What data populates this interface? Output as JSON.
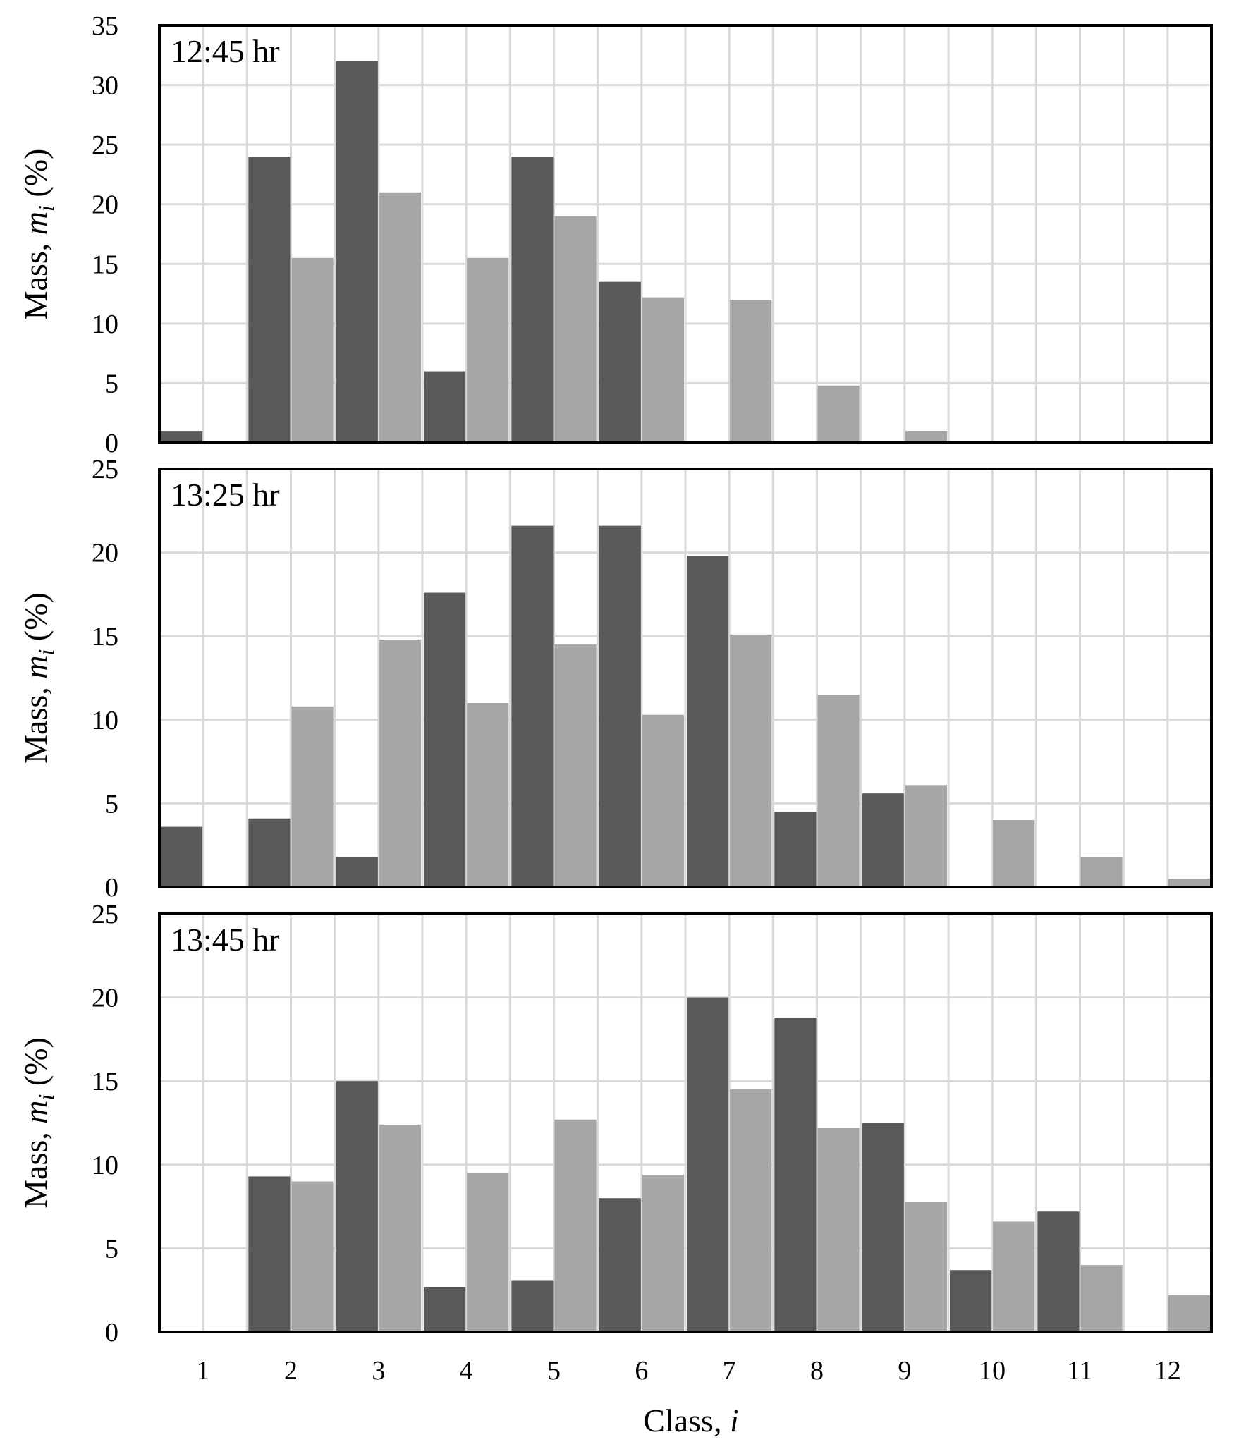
{
  "chart_data": [
    {
      "type": "bar",
      "title": "12:45 hr",
      "xlabel": "",
      "ylabel": "Mass, m_i (%)",
      "ylim": [
        0,
        35
      ],
      "yticks": [
        0,
        5,
        10,
        15,
        20,
        25,
        30,
        35
      ],
      "categories": [
        "1",
        "2",
        "3",
        "4",
        "5",
        "6",
        "7",
        "8",
        "9",
        "10",
        "11",
        "12"
      ],
      "series": [
        {
          "name": "dark",
          "color": "#595959",
          "values": [
            1,
            24,
            32,
            6,
            24,
            13.5,
            0,
            0,
            0,
            0,
            0,
            0
          ]
        },
        {
          "name": "light",
          "color": "#a6a6a6",
          "values": [
            0,
            15.5,
            21,
            15.5,
            19,
            12.2,
            12,
            4.8,
            1,
            0,
            0,
            0
          ]
        }
      ]
    },
    {
      "type": "bar",
      "title": "13:25 hr",
      "xlabel": "",
      "ylabel": "Mass, m_i (%)",
      "ylim": [
        0,
        25
      ],
      "yticks": [
        0,
        5,
        10,
        15,
        20,
        25
      ],
      "categories": [
        "1",
        "2",
        "3",
        "4",
        "5",
        "6",
        "7",
        "8",
        "9",
        "10",
        "11",
        "12"
      ],
      "series": [
        {
          "name": "dark",
          "color": "#595959",
          "values": [
            3.6,
            4.1,
            1.8,
            17.6,
            21.6,
            21.6,
            19.8,
            4.5,
            5.6,
            0,
            0,
            0
          ]
        },
        {
          "name": "light",
          "color": "#a6a6a6",
          "values": [
            0,
            10.8,
            14.8,
            11,
            14.5,
            10.3,
            15.1,
            11.5,
            6.1,
            4,
            1.8,
            0.5
          ]
        }
      ]
    },
    {
      "type": "bar",
      "title": "13:45 hr",
      "xlabel": "Class, i",
      "ylabel": "Mass, m_i (%)",
      "ylim": [
        0,
        25
      ],
      "yticks": [
        0,
        5,
        10,
        15,
        20,
        25
      ],
      "categories": [
        "1",
        "2",
        "3",
        "4",
        "5",
        "6",
        "7",
        "8",
        "9",
        "10",
        "11",
        "12"
      ],
      "series": [
        {
          "name": "dark",
          "color": "#595959",
          "values": [
            0,
            9.3,
            15,
            2.7,
            3.1,
            8,
            20,
            18.8,
            12.5,
            3.7,
            7.2,
            0
          ]
        },
        {
          "name": "light",
          "color": "#a6a6a6",
          "values": [
            0,
            9,
            12.4,
            9.5,
            12.7,
            9.4,
            14.5,
            12.2,
            7.8,
            6.6,
            4,
            2.2
          ]
        }
      ]
    }
  ],
  "axis_text": {
    "ylabel_prefix": "Mass, ",
    "ylabel_var": "m",
    "ylabel_sub": "i",
    "ylabel_suffix": " (%)",
    "xlabel_prefix": "Class, ",
    "xlabel_var": "i"
  }
}
